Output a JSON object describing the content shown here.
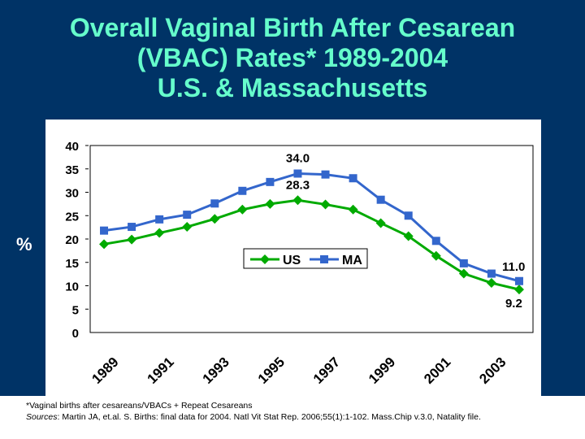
{
  "title": {
    "line1": "Overall Vaginal Birth After Cesarean",
    "line2": "(VBAC) Rates* 1989-2004",
    "line3": "U.S. & Massachusetts"
  },
  "y_axis_label": "%",
  "footnote": {
    "definition": "*Vaginal births after cesareans/VBACs + Repeat Cesareans",
    "sources_label": "Sources",
    "sources_text": ": Martin JA, et.al. S. Births: final data for 2004. Natl Vit Stat Rep. 2006;55(1):1-102. Mass.Chip v.3.0, Natality file."
  },
  "colors": {
    "background": "#003366",
    "title": "#66ffcc",
    "us": "#00aa00",
    "ma": "#3366cc"
  },
  "chart_data": {
    "type": "line",
    "title": "Overall Vaginal Birth After Cesarean (VBAC) Rates* 1989-2004 U.S. & Massachusetts",
    "xlabel": "",
    "ylabel": "%",
    "ylim": [
      0,
      40
    ],
    "yticks": [
      0,
      5,
      10,
      15,
      20,
      25,
      30,
      35,
      40
    ],
    "categories": [
      "1989",
      "1990",
      "1991",
      "1992",
      "1993",
      "1994",
      "1995",
      "1996",
      "1997",
      "1998",
      "1999",
      "2000",
      "2001",
      "2002",
      "2003",
      "2004"
    ],
    "xtick_labels": [
      "1989",
      "1991",
      "1993",
      "1995",
      "1997",
      "1999",
      "2001",
      "2003"
    ],
    "legend": "center",
    "series": [
      {
        "name": "US",
        "marker": "diamond",
        "color": "#00aa00",
        "values": [
          18.9,
          19.9,
          21.3,
          22.6,
          24.3,
          26.3,
          27.5,
          28.3,
          27.4,
          26.3,
          23.4,
          20.6,
          16.4,
          12.6,
          10.6,
          9.2
        ]
      },
      {
        "name": "MA",
        "marker": "square",
        "color": "#3366cc",
        "values": [
          21.8,
          22.6,
          24.2,
          25.2,
          27.6,
          30.3,
          32.2,
          34.0,
          33.8,
          33.0,
          28.4,
          25.0,
          19.6,
          14.8,
          12.6,
          11.0
        ]
      }
    ],
    "annotations": [
      {
        "series": "MA",
        "category": "1996",
        "text": "34.0"
      },
      {
        "series": "US",
        "category": "1996",
        "text": "28.3"
      },
      {
        "series": "MA",
        "category": "2004",
        "text": "11.0"
      },
      {
        "series": "US",
        "category": "2004",
        "text": "9.2"
      }
    ]
  }
}
